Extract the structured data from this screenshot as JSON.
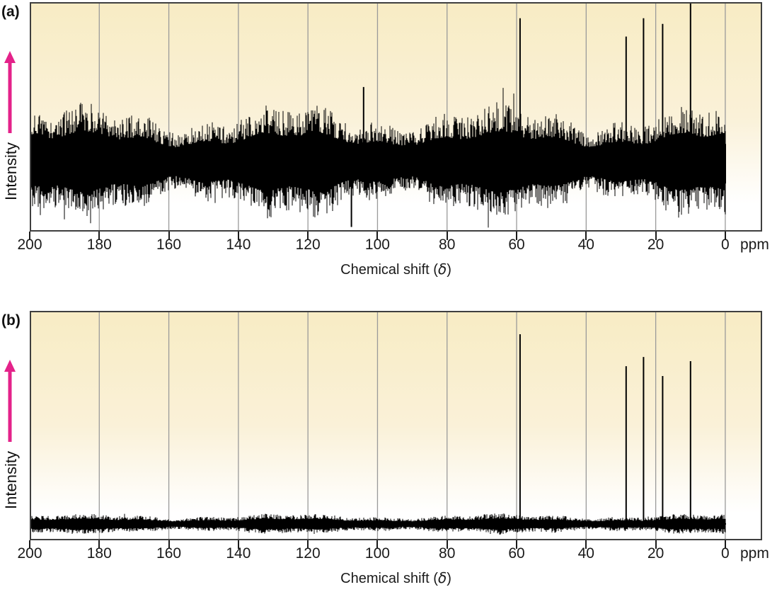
{
  "colors": {
    "accent_magenta": "#e4228a",
    "plot_bg_top": "#f8ecc4",
    "plot_bg_mid": "#faf1d8",
    "plot_bg_bottom": "#ffffff",
    "gridline": "#9a9a9a",
    "trace": "#000000",
    "plot_border": "#3f3f3f",
    "text": "#1a1a1a"
  },
  "panels": [
    {
      "id": "a",
      "label": "(a)",
      "y_axis_label": "Intensity",
      "x_axis": {
        "label_pre": "Chemical shift (",
        "label_delta": "δ",
        "label_post": ")",
        "unit": "ppm",
        "ticks": [
          200,
          180,
          160,
          140,
          120,
          100,
          80,
          60,
          40,
          20,
          0
        ]
      }
    },
    {
      "id": "b",
      "label": "(b)",
      "y_axis_label": "Intensity",
      "x_axis": {
        "label_pre": "Chemical shift (",
        "label_delta": "δ",
        "label_post": ")",
        "unit": "ppm",
        "ticks": [
          200,
          180,
          160,
          140,
          120,
          100,
          80,
          60,
          40,
          20,
          0
        ]
      }
    }
  ],
  "chart_data": [
    {
      "type": "line",
      "panel": "a",
      "description": "13C NMR spectrum, single scan: five peaks barely visible above heavy baseline noise",
      "xlabel": "Chemical shift (δ)",
      "x_unit": "ppm",
      "ylabel": "Intensity",
      "x_axis_reversed": true,
      "xlim": [
        200,
        -10.6
      ],
      "x_ticks": [
        200,
        180,
        160,
        140,
        120,
        100,
        80,
        60,
        40,
        20,
        0
      ],
      "x_gridlines_ppm": [
        180,
        160,
        140,
        120,
        100,
        80,
        60,
        40,
        20,
        0
      ],
      "grid": "vertical gridlines every 20 ppm",
      "legend": "none",
      "peaks": [
        {
          "ppm": 59,
          "apex_frac": 0.93
        },
        {
          "ppm": 28.5,
          "apex_frac": 0.85
        },
        {
          "ppm": 23.5,
          "apex_frac": 0.93
        },
        {
          "ppm": 18,
          "apex_frac": 0.905
        },
        {
          "ppm": 10,
          "apex_frac": 1.0
        }
      ],
      "outlier_spikes": [
        {
          "ppm": 104,
          "apex_frac": 0.63
        },
        {
          "ppm": 107.5,
          "apex_frac": 0.02
        }
      ],
      "noise": {
        "baseline_frac": 0.305,
        "amp_frac": 0.235,
        "seed": 7
      },
      "data_end_ppm": 0
    },
    {
      "type": "line",
      "panel": "b",
      "description": "13C NMR spectrum, signal-averaged (many scans): five sharp peaks, low noise",
      "xlabel": "Chemical shift (δ)",
      "x_unit": "ppm",
      "ylabel": "Intensity",
      "x_axis_reversed": true,
      "xlim": [
        200,
        -10.6
      ],
      "x_ticks": [
        200,
        180,
        160,
        140,
        120,
        100,
        80,
        60,
        40,
        20,
        0
      ],
      "x_gridlines_ppm": [
        180,
        160,
        140,
        120,
        100,
        80,
        60,
        40,
        20,
        0
      ],
      "grid": "vertical gridlines every 20 ppm",
      "legend": "none",
      "peaks": [
        {
          "ppm": 59,
          "apex_frac": 0.898
        },
        {
          "ppm": 28.5,
          "apex_frac": 0.759
        },
        {
          "ppm": 23.5,
          "apex_frac": 0.799
        },
        {
          "ppm": 18,
          "apex_frac": 0.716
        },
        {
          "ppm": 10,
          "apex_frac": 0.781
        }
      ],
      "outlier_spikes": [],
      "noise": {
        "baseline_frac": 0.071,
        "amp_frac": 0.042,
        "seed": 3
      },
      "data_end_ppm": 0
    }
  ]
}
